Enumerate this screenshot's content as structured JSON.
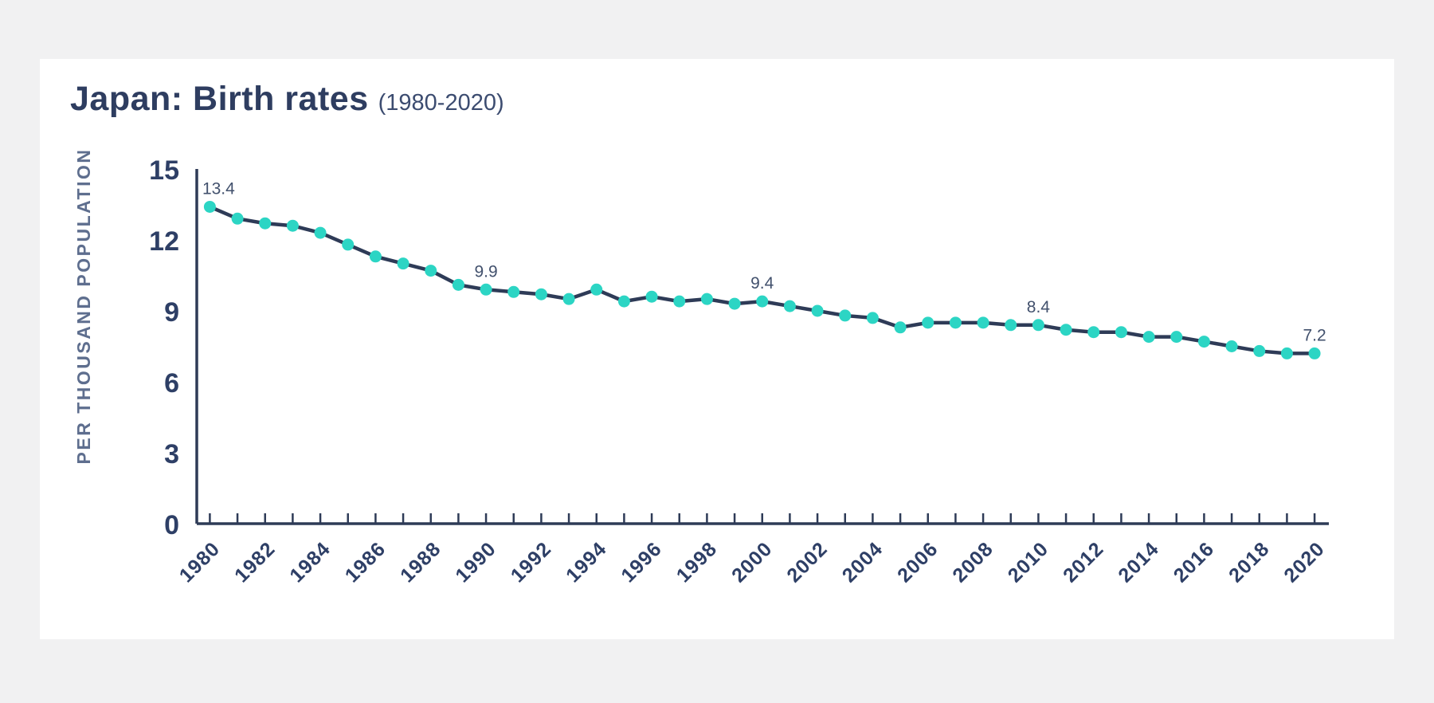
{
  "page": {
    "background_color": "#f1f1f2",
    "card_background_color": "#ffffff"
  },
  "header": {
    "title": "Japan: Birth rates",
    "subtitle": "(1980-2020)"
  },
  "chart_data": {
    "type": "line",
    "title": "Japan: Birth rates",
    "subtitle": "(1980-2020)",
    "xlabel": "",
    "ylabel": "PER THOUSAND POPULATION",
    "years": [
      1980,
      1981,
      1982,
      1983,
      1984,
      1985,
      1986,
      1987,
      1988,
      1989,
      1990,
      1991,
      1992,
      1993,
      1994,
      1995,
      1996,
      1997,
      1998,
      1999,
      2000,
      2001,
      2002,
      2003,
      2004,
      2005,
      2006,
      2007,
      2008,
      2009,
      2010,
      2011,
      2012,
      2013,
      2014,
      2015,
      2016,
      2017,
      2018,
      2019,
      2020
    ],
    "values": [
      13.4,
      12.9,
      12.7,
      12.6,
      12.3,
      11.8,
      11.3,
      11.0,
      10.7,
      10.1,
      9.9,
      9.8,
      9.7,
      9.5,
      9.9,
      9.4,
      9.6,
      9.4,
      9.5,
      9.3,
      9.4,
      9.2,
      9.0,
      8.8,
      8.7,
      8.3,
      8.5,
      8.5,
      8.5,
      8.4,
      8.4,
      8.2,
      8.1,
      8.1,
      7.9,
      7.9,
      7.7,
      7.5,
      7.3,
      7.2,
      7.2
    ],
    "y_ticks": [
      0,
      3,
      6,
      9,
      12,
      15
    ],
    "ylim": [
      0,
      15
    ],
    "x_tick_interval": 2,
    "x_tick_labels": [
      "1980",
      "1982",
      "1984",
      "1986",
      "1988",
      "1990",
      "1992",
      "1994",
      "1996",
      "1998",
      "2000",
      "2002",
      "2004",
      "2006",
      "2008",
      "2010",
      "2012",
      "2014",
      "2016",
      "2018",
      "2020"
    ],
    "annotated_points": [
      {
        "year": 1980,
        "value": 13.4,
        "label": "13.4"
      },
      {
        "year": 1990,
        "value": 9.9,
        "label": "9.9"
      },
      {
        "year": 2000,
        "value": 9.4,
        "label": "9.4"
      },
      {
        "year": 2010,
        "value": 8.4,
        "label": "8.4"
      },
      {
        "year": 2020,
        "value": 7.2,
        "label": "7.2"
      }
    ],
    "grid": false,
    "legend": false,
    "marker": "circle",
    "colors": {
      "line": "#2e3b57",
      "marker": "#2cd5c4",
      "title": "#2e3d60",
      "subtitle": "#3c4c70",
      "tick_label": "#2e3f66",
      "y_axis_label": "#5e6e8e",
      "annotation": "#42516d",
      "page_background": "#f1f1f2",
      "card_background": "#ffffff"
    }
  }
}
